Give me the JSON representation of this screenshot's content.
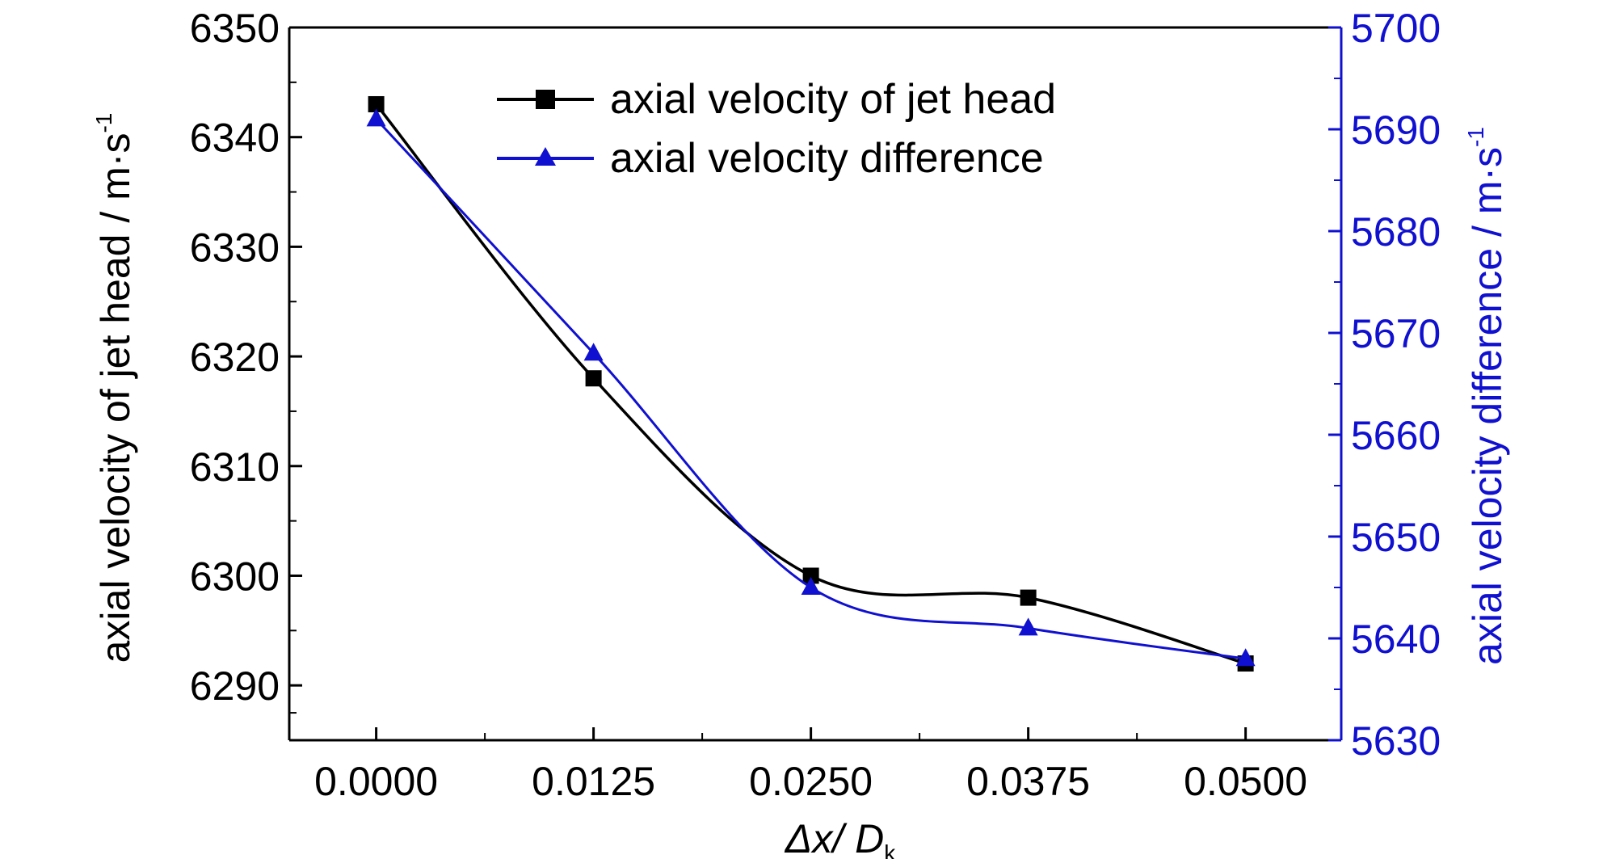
{
  "chart_data": {
    "type": "line",
    "x": [
      0.0,
      0.0125,
      0.025,
      0.0375,
      0.05
    ],
    "x_tick_labels": [
      "0.0000",
      "0.0125",
      "0.0250",
      "0.0375",
      "0.0500"
    ],
    "xlim": [
      -0.005,
      0.0555
    ],
    "xlabel": {
      "main": "Δx/ D",
      "sub": "k"
    },
    "y_left": {
      "label": "axial velocity of jet head / m·s",
      "label_sup": "-1",
      "ylim": [
        6285,
        6350
      ],
      "ticks": [
        6290,
        6300,
        6310,
        6320,
        6330,
        6340,
        6350
      ],
      "tick_labels": [
        "6290",
        "6300",
        "6310",
        "6320",
        "6330",
        "6340",
        "6350"
      ]
    },
    "y_right": {
      "label": "axial velocity difference / m·s",
      "label_sup": "-1",
      "ylim": [
        5630,
        5700
      ],
      "ticks": [
        5630,
        5640,
        5650,
        5660,
        5670,
        5680,
        5690,
        5700
      ],
      "tick_labels": [
        "5630",
        "5640",
        "5650",
        "5660",
        "5670",
        "5680",
        "5690",
        "5700"
      ]
    },
    "series": [
      {
        "name": "axial velocity of jet head",
        "axis": "left",
        "marker": "square",
        "color": "#000000",
        "values": [
          6343,
          6318,
          6300,
          6298,
          6292
        ]
      },
      {
        "name": "axial velocity difference",
        "axis": "right",
        "marker": "triangle",
        "color": "#1010d0",
        "values": [
          5691,
          5668,
          5645,
          5641,
          5638
        ]
      }
    ],
    "legend_position": "top-center",
    "grid": false
  }
}
